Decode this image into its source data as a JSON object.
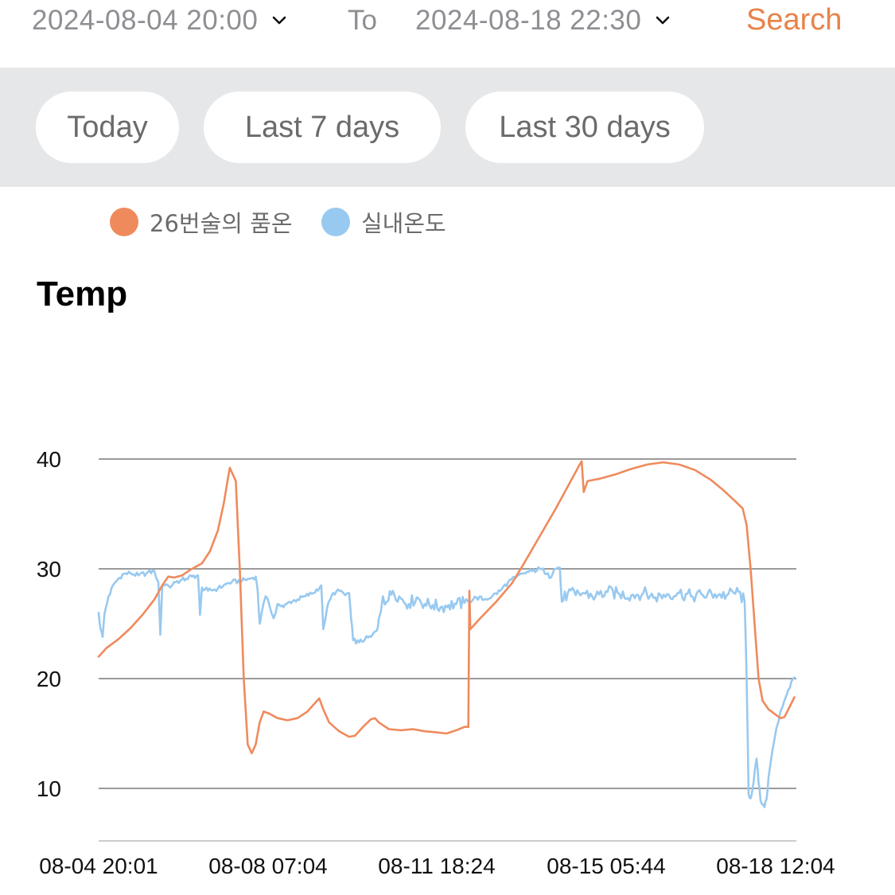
{
  "filters": {
    "start_date": "2024-08-04 20:00",
    "to_label": "To",
    "end_date": "2024-08-18 22:30",
    "search_label": "Search"
  },
  "quick_ranges": [
    {
      "label": "Today"
    },
    {
      "label": "Last 7 days"
    },
    {
      "label": "Last 30 days"
    }
  ],
  "icons": {
    "start_dropdown": "chevron-down-icon",
    "end_dropdown": "chevron-down-icon"
  },
  "colors": {
    "accent": "#e8834a",
    "series_1": "#ef8a5c",
    "series_2": "#98c9f0"
  },
  "chart_data": {
    "type": "line",
    "title": "Temp",
    "xlabel": "",
    "ylabel": "",
    "ylim": [
      5,
      40
    ],
    "yticks": [
      10,
      20,
      30,
      40
    ],
    "x_tick_labels": [
      "08-04 20:01",
      "08-08 07:04",
      "08-11 18:24",
      "08-15 05:44",
      "08-18 12:04"
    ],
    "x_unit": "hours since 08-04 20:01",
    "xlim": [
      0,
      351
    ],
    "grid": true,
    "legend": "top-left",
    "series": [
      {
        "name": "26번술의 품온",
        "color": "#ef8a5c",
        "points": [
          [
            0,
            22
          ],
          [
            4,
            22.8
          ],
          [
            10,
            23.6
          ],
          [
            16,
            24.6
          ],
          [
            22,
            25.8
          ],
          [
            28,
            27.2
          ],
          [
            32,
            28.5
          ],
          [
            35,
            29.3
          ],
          [
            38,
            29.2
          ],
          [
            42,
            29.4
          ],
          [
            46,
            29.9
          ],
          [
            52,
            30.5
          ],
          [
            56,
            31.6
          ],
          [
            60,
            33.5
          ],
          [
            63,
            36.0
          ],
          [
            65,
            38.2
          ],
          [
            66,
            39.2
          ],
          [
            67,
            38.8
          ],
          [
            69,
            38.0
          ],
          [
            71,
            30.0
          ],
          [
            73,
            20.0
          ],
          [
            75,
            14.0
          ],
          [
            77,
            13.2
          ],
          [
            79,
            14.0
          ],
          [
            81,
            16.0
          ],
          [
            83,
            17.0
          ],
          [
            86,
            16.8
          ],
          [
            90,
            16.4
          ],
          [
            95,
            16.2
          ],
          [
            100,
            16.4
          ],
          [
            105,
            17.0
          ],
          [
            110,
            18.0
          ],
          [
            111,
            18.2
          ],
          [
            113,
            17.2
          ],
          [
            116,
            16.0
          ],
          [
            121,
            15.2
          ],
          [
            126,
            14.7
          ],
          [
            129,
            14.8
          ],
          [
            133,
            15.6
          ],
          [
            137,
            16.3
          ],
          [
            139,
            16.4
          ],
          [
            141,
            16.0
          ],
          [
            146,
            15.4
          ],
          [
            152,
            15.3
          ],
          [
            158,
            15.4
          ],
          [
            164,
            15.2
          ],
          [
            170,
            15.1
          ],
          [
            175,
            15.0
          ],
          [
            180,
            15.3
          ],
          [
            184,
            15.6
          ],
          [
            186,
            15.6
          ],
          [
            186.5,
            28.0
          ],
          [
            187,
            24.5
          ],
          [
            192,
            25.5
          ],
          [
            200,
            27.0
          ],
          [
            208,
            28.7
          ],
          [
            214,
            30.5
          ],
          [
            222,
            33.0
          ],
          [
            230,
            35.5
          ],
          [
            236,
            37.5
          ],
          [
            242,
            39.5
          ],
          [
            243,
            39.8
          ],
          [
            244,
            37.0
          ],
          [
            246,
            38.0
          ],
          [
            252,
            38.2
          ],
          [
            260,
            38.6
          ],
          [
            268,
            39.1
          ],
          [
            276,
            39.5
          ],
          [
            284,
            39.7
          ],
          [
            292,
            39.5
          ],
          [
            300,
            39.0
          ],
          [
            308,
            38.1
          ],
          [
            314,
            37.2
          ],
          [
            320,
            36.2
          ],
          [
            324,
            35.5
          ],
          [
            326,
            34.0
          ],
          [
            328,
            30.0
          ],
          [
            330,
            25.0
          ],
          [
            332,
            20.0
          ],
          [
            334,
            18.0
          ],
          [
            337,
            17.2
          ],
          [
            340,
            16.8
          ],
          [
            343,
            16.4
          ],
          [
            345,
            16.5
          ],
          [
            347,
            17.2
          ],
          [
            350,
            18.3
          ]
        ]
      },
      {
        "name": "실내온도",
        "color": "#98c9f0",
        "points": [
          [
            0,
            26
          ],
          [
            1,
            24.5
          ],
          [
            2,
            23.8
          ],
          [
            3,
            26.0
          ],
          [
            5,
            27.5
          ],
          [
            8,
            28.7
          ],
          [
            12,
            29.5
          ],
          [
            16,
            29.6
          ],
          [
            20,
            29.4
          ],
          [
            24,
            29.6
          ],
          [
            28,
            29.8
          ],
          [
            30,
            28.8
          ],
          [
            31,
            24.0
          ],
          [
            32,
            28.5
          ],
          [
            34,
            28.6
          ],
          [
            36,
            28.3
          ],
          [
            38,
            28.8
          ],
          [
            41,
            28.9
          ],
          [
            44,
            29.1
          ],
          [
            47,
            29.3
          ],
          [
            50,
            29.4
          ],
          [
            51,
            25.8
          ],
          [
            52,
            28.3
          ],
          [
            55,
            28.0
          ],
          [
            60,
            28.2
          ],
          [
            64,
            28.6
          ],
          [
            67,
            28.8
          ],
          [
            72,
            28.9
          ],
          [
            76,
            29.1
          ],
          [
            79,
            29.3
          ],
          [
            80,
            28.0
          ],
          [
            81,
            25.0
          ],
          [
            82,
            26.0
          ],
          [
            84,
            27.5
          ],
          [
            86,
            26.6
          ],
          [
            88,
            25.5
          ],
          [
            90,
            26.8
          ],
          [
            93,
            26.5
          ],
          [
            96,
            27.0
          ],
          [
            100,
            27.2
          ],
          [
            104,
            27.5
          ],
          [
            108,
            27.8
          ],
          [
            112,
            28.5
          ],
          [
            113,
            24.5
          ],
          [
            115,
            26.5
          ],
          [
            118,
            27.8
          ],
          [
            122,
            28.0
          ],
          [
            124,
            27.6
          ],
          [
            126,
            27.8
          ],
          [
            127,
            25.5
          ],
          [
            128,
            23.5
          ],
          [
            131,
            23.3
          ],
          [
            134,
            23.6
          ],
          [
            137,
            23.8
          ],
          [
            140,
            24.4
          ],
          [
            141,
            25.5
          ],
          [
            143,
            27.5
          ],
          [
            145,
            27.0
          ],
          [
            148,
            28.0
          ],
          [
            152,
            27.3
          ],
          [
            156,
            26.8
          ],
          [
            160,
            27.4
          ],
          [
            164,
            26.8
          ],
          [
            168,
            26.7
          ],
          [
            172,
            26.5
          ],
          [
            176,
            26.7
          ],
          [
            180,
            26.8
          ],
          [
            184,
            26.9
          ],
          [
            186,
            27.0
          ],
          [
            190,
            27.4
          ],
          [
            194,
            27.2
          ],
          [
            198,
            27.5
          ],
          [
            202,
            28.0
          ],
          [
            206,
            28.8
          ],
          [
            210,
            29.2
          ],
          [
            214,
            29.6
          ],
          [
            218,
            29.8
          ],
          [
            222,
            30.0
          ],
          [
            226,
            29.6
          ],
          [
            230,
            30.0
          ],
          [
            232,
            30.1
          ],
          [
            233,
            27.0
          ],
          [
            236,
            27.8
          ],
          [
            240,
            27.6
          ],
          [
            244,
            27.8
          ],
          [
            250,
            27.5
          ],
          [
            256,
            27.9
          ],
          [
            262,
            27.7
          ],
          [
            268,
            27.6
          ],
          [
            274,
            27.8
          ],
          [
            280,
            27.4
          ],
          [
            286,
            27.7
          ],
          [
            292,
            27.8
          ],
          [
            298,
            27.5
          ],
          [
            304,
            27.6
          ],
          [
            310,
            27.7
          ],
          [
            316,
            27.6
          ],
          [
            322,
            27.9
          ],
          [
            325,
            27.0
          ],
          [
            326,
            20.0
          ],
          [
            327,
            9.5
          ],
          [
            328,
            9.1
          ],
          [
            329,
            10.0
          ],
          [
            330,
            11.5
          ],
          [
            331,
            12.7
          ],
          [
            332,
            10.5
          ],
          [
            333,
            8.9
          ],
          [
            334,
            8.5
          ],
          [
            335,
            8.3
          ],
          [
            336,
            9.0
          ],
          [
            337,
            11.0
          ],
          [
            339,
            13.5
          ],
          [
            341,
            15.5
          ],
          [
            343,
            17.0
          ],
          [
            345,
            18.0
          ],
          [
            347,
            19.0
          ],
          [
            350,
            20.1
          ]
        ]
      }
    ]
  }
}
